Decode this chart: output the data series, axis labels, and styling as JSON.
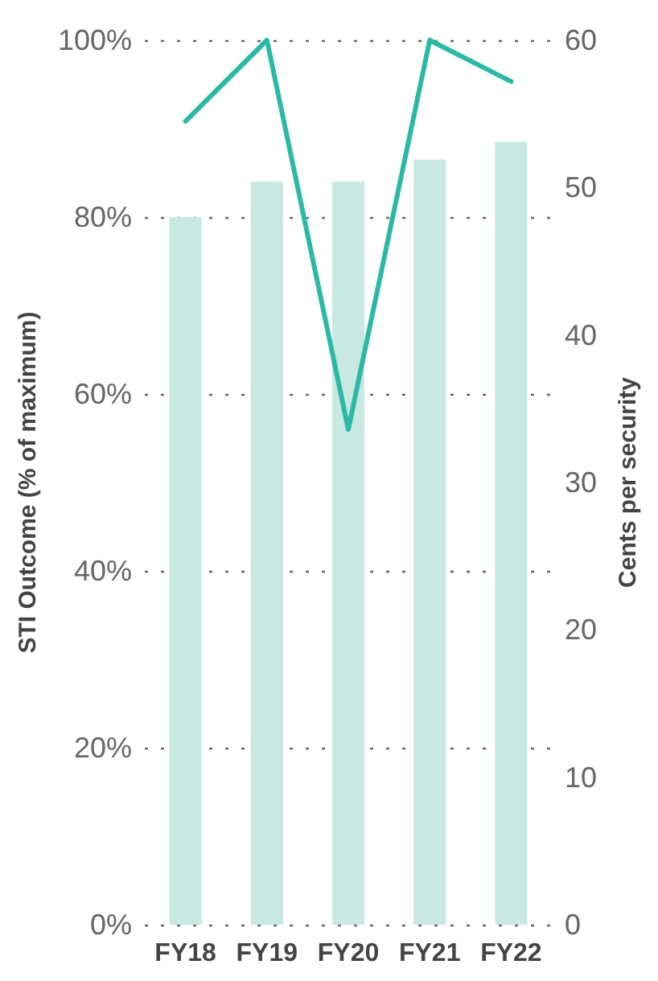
{
  "chart_data": {
    "type": "bar",
    "categories": [
      "FY18",
      "FY19",
      "FY20",
      "FY21",
      "FY22"
    ],
    "ylabel": "STI Outcome (% of maximum)",
    "y2label": "Cents per security",
    "series": [
      {
        "color": "#c8e8e2",
        "values": [
          80,
          84,
          84,
          86.5,
          88.5
        ]
      },
      {
        "type": "line",
        "axis": "y2",
        "color": "#2bb9a5",
        "values": [
          54.5,
          60,
          33.6,
          60,
          57.2
        ]
      }
    ],
    "ylim": [
      0,
      100
    ],
    "yticks": [
      {
        "value": 0,
        "label": "0%"
      },
      {
        "value": 20,
        "label": "20%"
      },
      {
        "value": 40,
        "label": "40%"
      },
      {
        "value": 60,
        "label": "60%"
      },
      {
        "value": 80,
        "label": "80%"
      },
      {
        "value": 100,
        "label": "100%"
      }
    ],
    "y2lim": [
      0,
      60
    ],
    "y2ticks": [
      0,
      10,
      20,
      30,
      40,
      50,
      60
    ],
    "grid": "y",
    "marker": "none",
    "line_style": "solid"
  }
}
